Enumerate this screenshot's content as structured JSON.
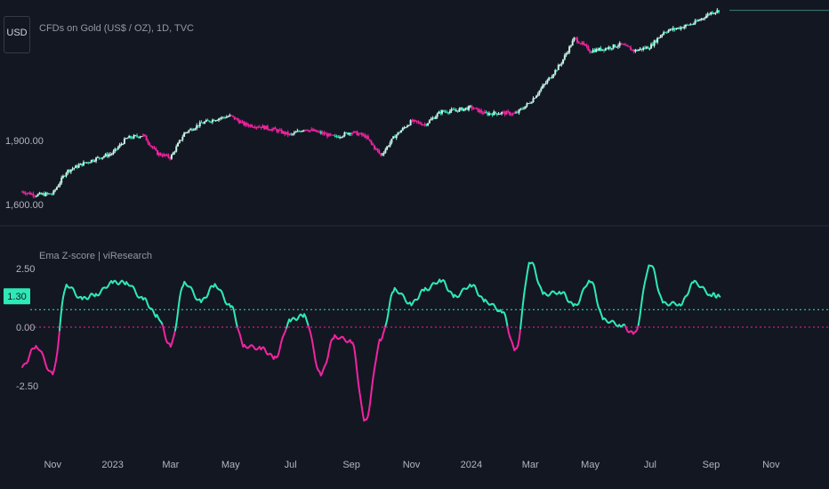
{
  "header": {
    "currency": "USD",
    "symbol_title": "CFDs on Gold (US$ / OZ), 1D, TVC"
  },
  "indicator": {
    "title": "Ema Z-score | viResearch",
    "current_value_label": "1.30",
    "thresholds": [
      0.75,
      0.0
    ]
  },
  "colors": {
    "background": "#131722",
    "bull": "#2ee8b6",
    "bear": "#f0249f",
    "text": "#b2b5be",
    "separator": "#2a2e39"
  },
  "chart_data": [
    {
      "type": "line",
      "title": "CFDs on Gold (US$ / OZ), 1D, TVC",
      "style": "candlestick",
      "x_ticks": [
        "Nov",
        "2023",
        "Mar",
        "May",
        "Jul",
        "Sep",
        "Nov",
        "2024",
        "Mar",
        "May",
        "Jul",
        "Sep",
        "Nov"
      ],
      "y_tick_labels": [
        "1,900.00",
        "1,600.00"
      ],
      "y_ticks": [
        1900,
        1600
      ],
      "x": [
        "2022-10-01",
        "2022-10-15",
        "2022-11-01",
        "2022-11-15",
        "2022-12-01",
        "2022-12-15",
        "2023-01-01",
        "2023-01-15",
        "2023-02-01",
        "2023-02-15",
        "2023-03-01",
        "2023-03-15",
        "2023-04-01",
        "2023-04-15",
        "2023-05-01",
        "2023-05-15",
        "2023-06-01",
        "2023-06-15",
        "2023-07-01",
        "2023-07-15",
        "2023-08-01",
        "2023-08-15",
        "2023-09-01",
        "2023-09-15",
        "2023-10-01",
        "2023-10-15",
        "2023-11-01",
        "2023-11-15",
        "2023-12-01",
        "2023-12-15",
        "2024-01-01",
        "2024-01-15",
        "2024-02-01",
        "2024-02-15",
        "2024-03-01",
        "2024-03-15",
        "2024-04-01",
        "2024-04-15",
        "2024-05-01",
        "2024-05-15",
        "2024-06-01",
        "2024-06-15",
        "2024-07-01",
        "2024-07-15",
        "2024-08-01",
        "2024-08-15",
        "2024-09-01",
        "2024-09-10"
      ],
      "series": [
        {
          "values": [
            1660,
            1645,
            1650,
            1755,
            1790,
            1815,
            1840,
            1910,
            1925,
            1840,
            1820,
            1935,
            1980,
            2000,
            2015,
            1975,
            1965,
            1950,
            1925,
            1955,
            1935,
            1915,
            1940,
            1920,
            1830,
            1920,
            1990,
            1975,
            2035,
            2040,
            2055,
            2025,
            2030,
            2025,
            2080,
            2160,
            2260,
            2380,
            2320,
            2330,
            2350,
            2320,
            2340,
            2410,
            2430,
            2450,
            2500,
            2510
          ]
        }
      ]
    },
    {
      "type": "line",
      "title": "Ema Z-score | viResearch",
      "y_tick_labels": [
        "2.50",
        "0.00",
        "-2.50"
      ],
      "y_ticks": [
        2.5,
        0.0,
        -2.5
      ],
      "ylim": [
        -4.2,
        3.4
      ],
      "reference_lines": [
        0.75,
        0.0
      ],
      "x": [
        "2022-10-01",
        "2022-10-15",
        "2022-11-01",
        "2022-11-15",
        "2022-12-01",
        "2022-12-15",
        "2023-01-01",
        "2023-01-15",
        "2023-02-01",
        "2023-02-15",
        "2023-03-01",
        "2023-03-15",
        "2023-04-01",
        "2023-04-15",
        "2023-05-01",
        "2023-05-15",
        "2023-06-01",
        "2023-06-15",
        "2023-07-01",
        "2023-07-15",
        "2023-08-01",
        "2023-08-15",
        "2023-09-01",
        "2023-09-15",
        "2023-10-01",
        "2023-10-15",
        "2023-11-01",
        "2023-11-15",
        "2023-12-01",
        "2023-12-15",
        "2024-01-01",
        "2024-01-15",
        "2024-02-01",
        "2024-02-15",
        "2024-03-01",
        "2024-03-15",
        "2024-04-01",
        "2024-04-15",
        "2024-05-01",
        "2024-05-15",
        "2024-06-01",
        "2024-06-15",
        "2024-07-01",
        "2024-07-15",
        "2024-08-01",
        "2024-08-15",
        "2024-09-01",
        "2024-09-10"
      ],
      "series": [
        {
          "values": [
            -1.7,
            -0.8,
            -2.0,
            1.8,
            1.2,
            1.4,
            1.9,
            1.9,
            1.2,
            0.5,
            -0.8,
            1.9,
            1.1,
            1.8,
            0.9,
            -0.8,
            -0.9,
            -1.3,
            0.3,
            0.5,
            -2.0,
            -0.4,
            -0.6,
            -4.0,
            -0.5,
            1.6,
            1.0,
            1.6,
            2.0,
            1.3,
            1.8,
            1.1,
            0.7,
            -1.0,
            2.8,
            1.4,
            1.5,
            0.9,
            2.0,
            0.3,
            0.1,
            -0.3,
            2.7,
            1.0,
            1.0,
            1.9,
            1.4,
            1.3
          ]
        }
      ]
    }
  ]
}
